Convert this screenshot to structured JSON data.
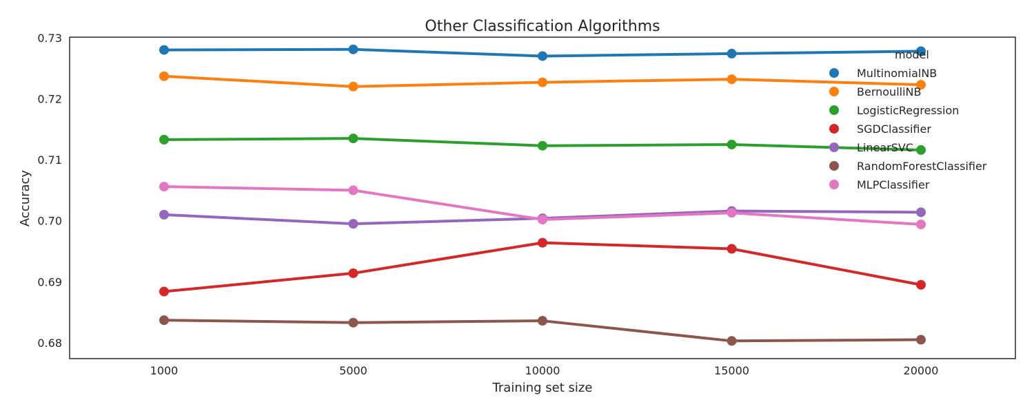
{
  "chart_data": {
    "type": "line",
    "title": "Other Classification Algorithms",
    "xlabel": "Training set size",
    "ylabel": "Accuracy",
    "categories": [
      "1000",
      "5000",
      "10000",
      "15000",
      "20000"
    ],
    "yticks": [
      "0.68",
      "0.69",
      "0.70",
      "0.71",
      "0.72",
      "0.73"
    ],
    "ylim": [
      0.6774,
      0.7301
    ],
    "grid": false,
    "legend": {
      "title": "model",
      "placement": "top-right"
    },
    "series": [
      {
        "name": "MultinomialNB",
        "color": "#1f77b4",
        "values": [
          0.728,
          0.7281,
          0.727,
          0.7274,
          0.7278
        ]
      },
      {
        "name": "BernoulliNB",
        "color": "#ff7f0e",
        "values": [
          0.7237,
          0.722,
          0.7227,
          0.7232,
          0.7223
        ]
      },
      {
        "name": "LogisticRegression",
        "color": "#2ca02c",
        "values": [
          0.7133,
          0.7135,
          0.7123,
          0.7125,
          0.7116
        ]
      },
      {
        "name": "SGDClassifier",
        "color": "#d62728",
        "values": [
          0.6884,
          0.6914,
          0.6964,
          0.6954,
          0.6895
        ]
      },
      {
        "name": "LinearSVC",
        "color": "#9467bd",
        "values": [
          0.701,
          0.6995,
          0.7004,
          0.7016,
          0.7014
        ]
      },
      {
        "name": "RandomForestClassifier",
        "color": "#8c564b",
        "values": [
          0.6837,
          0.6833,
          0.6836,
          0.6803,
          0.6805
        ]
      },
      {
        "name": "MLPClassifier",
        "color": "#e377c2",
        "values": [
          0.7056,
          0.705,
          0.7002,
          0.7013,
          0.6994
        ]
      }
    ]
  }
}
